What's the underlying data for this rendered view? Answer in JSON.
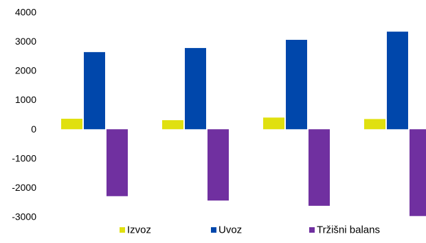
{
  "chart_data": {
    "type": "bar",
    "categories": [
      "",
      "",
      "",
      ""
    ],
    "series": [
      {
        "name": "Izvoz",
        "color": "#e0e010",
        "values": [
          360,
          310,
          400,
          350
        ]
      },
      {
        "name": "Uvoz",
        "color": "#0047ab",
        "values": [
          2640,
          2780,
          3060,
          3340
        ]
      },
      {
        "name": "Tržišni balans",
        "color": "#7030a0",
        "values": [
          -2290,
          -2440,
          -2620,
          -2970
        ]
      }
    ],
    "yticks": [
      4000,
      3000,
      2000,
      1000,
      0,
      -1000,
      -2000,
      -3000
    ],
    "ylim": [
      -3000,
      4000
    ],
    "grid": false,
    "legend_position": "bottom"
  }
}
